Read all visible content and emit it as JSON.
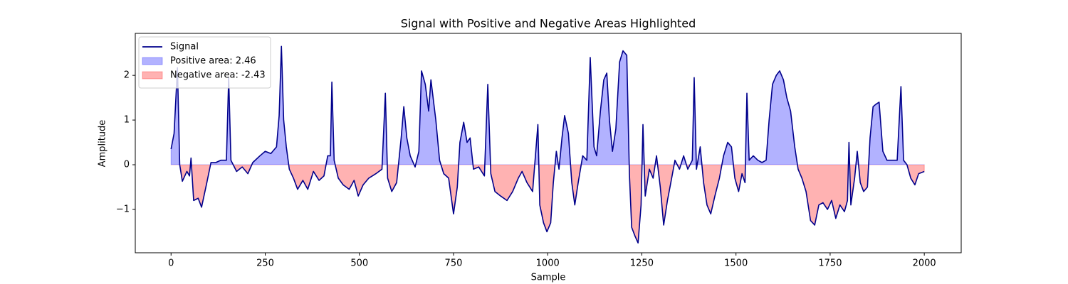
{
  "chart_data": {
    "type": "line",
    "title": "Signal with Positive and Negative Areas Highlighted",
    "x_label": "Sample",
    "y_label": "Amplitude",
    "xlim": [
      -95,
      2098
    ],
    "ylim": [
      -1.97,
      2.94
    ],
    "xticks": [
      0,
      250,
      500,
      750,
      1000,
      1250,
      1500,
      1750,
      2000
    ],
    "yticks": [
      {
        "value": -1,
        "label": "−1"
      },
      0,
      1,
      2
    ],
    "grid": false,
    "legend": "upper left",
    "x": [
      0,
      8,
      17,
      23,
      30,
      42,
      49,
      53,
      60,
      72,
      81,
      95,
      106,
      119,
      132,
      147,
      153,
      159,
      174,
      189,
      204,
      217,
      236,
      250,
      265,
      280,
      287,
      293,
      299,
      306,
      314,
      325,
      336,
      350,
      363,
      378,
      393,
      406,
      416,
      423,
      427,
      433,
      444,
      457,
      473,
      486,
      497,
      510,
      525,
      544,
      560,
      569,
      575,
      586,
      599,
      611,
      618,
      626,
      635,
      648,
      658,
      665,
      675,
      684,
      690,
      703,
      713,
      724,
      737,
      750,
      760,
      767,
      777,
      786,
      794,
      803,
      817,
      832,
      841,
      849,
      860,
      875,
      892,
      907,
      922,
      932,
      945,
      960,
      974,
      979,
      989,
      998,
      1008,
      1015,
      1023,
      1030,
      1038,
      1045,
      1055,
      1064,
      1072,
      1081,
      1093,
      1104,
      1113,
      1123,
      1130,
      1140,
      1149,
      1157,
      1164,
      1172,
      1181,
      1191,
      1200,
      1210,
      1217,
      1223,
      1232,
      1240,
      1248,
      1253,
      1259,
      1270,
      1280,
      1289,
      1299,
      1308,
      1318,
      1327,
      1338,
      1350,
      1361,
      1372,
      1384,
      1389,
      1395,
      1405,
      1414,
      1423,
      1433,
      1444,
      1456,
      1467,
      1478,
      1488,
      1497,
      1507,
      1516,
      1524,
      1529,
      1535,
      1546,
      1558,
      1569,
      1580,
      1588,
      1597,
      1607,
      1616,
      1626,
      1635,
      1645,
      1656,
      1665,
      1675,
      1686,
      1698,
      1709,
      1720,
      1731,
      1743,
      1754,
      1765,
      1776,
      1788,
      1796,
      1800,
      1805,
      1815,
      1822,
      1830,
      1839,
      1849,
      1856,
      1864,
      1871,
      1880,
      1890,
      1901,
      1912,
      1928,
      1938,
      1945,
      1954,
      1964,
      1975,
      1985,
      2000
    ],
    "series": [
      {
        "name": "Signal",
        "color": "#00008b",
        "values": [
          0.35,
          0.7,
          2.17,
          0,
          -0.37,
          -0.15,
          -0.25,
          0.15,
          -0.8,
          -0.75,
          -0.95,
          -0.4,
          0.05,
          0.05,
          0.1,
          0.1,
          1.95,
          0.1,
          -0.15,
          -0.05,
          -0.2,
          0.05,
          0.2,
          0.3,
          0.25,
          0.4,
          1.1,
          2.65,
          1.0,
          0.4,
          -0.1,
          -0.3,
          -0.55,
          -0.35,
          -0.55,
          -0.15,
          -0.35,
          -0.25,
          0.2,
          0.2,
          1.85,
          0.1,
          -0.3,
          -0.45,
          -0.55,
          -0.35,
          -0.7,
          -0.45,
          -0.3,
          -0.2,
          -0.1,
          1.6,
          -0.3,
          -0.6,
          -0.4,
          0.6,
          1.3,
          0.6,
          0.2,
          -0.05,
          0.3,
          2.1,
          1.8,
          1.2,
          1.9,
          1.0,
          0.1,
          -0.2,
          -0.3,
          -1.1,
          -0.5,
          0.5,
          0.95,
          0.5,
          0.6,
          -0.1,
          -0.05,
          -0.25,
          1.8,
          -0.2,
          -0.6,
          -0.7,
          -0.8,
          -0.6,
          -0.3,
          -0.15,
          -0.4,
          -0.6,
          0.9,
          -0.9,
          -1.3,
          -1.5,
          -1.3,
          -0.4,
          0.3,
          -0.1,
          0.6,
          1.1,
          0.7,
          -0.4,
          -0.9,
          -0.4,
          0.2,
          0.1,
          2.4,
          0.4,
          0.2,
          1.2,
          1.9,
          2.05,
          1.0,
          0.3,
          0.8,
          2.3,
          2.55,
          2.45,
          -0.2,
          -1.4,
          -1.6,
          -1.75,
          -0.9,
          0.9,
          -0.7,
          -0.1,
          -0.3,
          0.2,
          -0.5,
          -1.35,
          -0.8,
          -0.4,
          0.1,
          -0.1,
          0.2,
          -0.1,
          0.1,
          1.95,
          -0.1,
          0.4,
          -0.4,
          -0.9,
          -1.1,
          -0.7,
          -0.3,
          0.2,
          0.5,
          0.4,
          -0.3,
          -0.6,
          -0.2,
          -0.4,
          1.6,
          0.1,
          0.2,
          0.1,
          0.05,
          0.1,
          1.0,
          1.8,
          2.0,
          2.1,
          1.9,
          1.5,
          1.2,
          0.4,
          -0.1,
          -0.3,
          -0.6,
          -1.25,
          -1.35,
          -0.9,
          -0.85,
          -1.0,
          -0.8,
          -1.2,
          -0.9,
          -1.05,
          -0.8,
          0.5,
          -0.9,
          -0.3,
          0.3,
          -0.4,
          -0.6,
          -0.5,
          0.6,
          1.3,
          1.35,
          1.4,
          0.3,
          0.1,
          0.1,
          0.1,
          1.75,
          0.1,
          0.0,
          -0.3,
          -0.45,
          -0.2,
          -0.15
        ]
      }
    ],
    "fills": [
      {
        "name": "Positive area: 2.46",
        "color": "#0000ff",
        "side": "positive"
      },
      {
        "name": "Negative area: -2.43",
        "color": "#ff0000",
        "side": "negative"
      }
    ]
  }
}
